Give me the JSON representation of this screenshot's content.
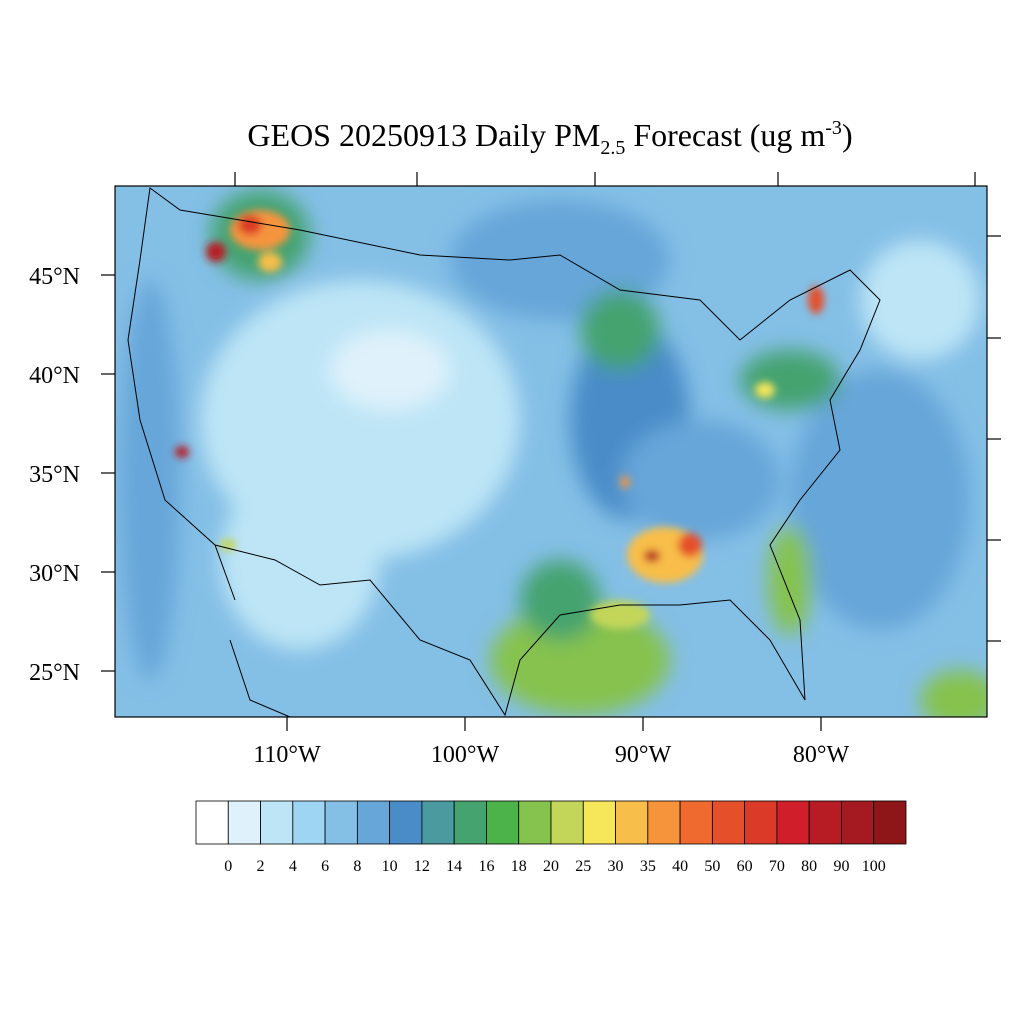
{
  "title": {
    "parts": [
      "GEOS 20250913 Daily PM",
      "2.5",
      " Forecast (ug m",
      "-3",
      ")"
    ]
  },
  "map": {
    "lat_ticks": [
      {
        "value": 45,
        "label": "45°N"
      },
      {
        "value": 40,
        "label": "40°N"
      },
      {
        "value": 35,
        "label": "35°N"
      },
      {
        "value": 30,
        "label": "30°N"
      },
      {
        "value": 25,
        "label": "25°N"
      }
    ],
    "lon_ticks": [
      {
        "value": -110,
        "label": "110°W"
      },
      {
        "value": -100,
        "label": "100°W"
      },
      {
        "value": -90,
        "label": "90°W"
      },
      {
        "value": -80,
        "label": "80°W"
      }
    ]
  },
  "colorbar": {
    "levels": [
      0,
      2,
      4,
      6,
      8,
      10,
      12,
      14,
      16,
      18,
      20,
      25,
      30,
      35,
      40,
      50,
      60,
      70,
      80,
      90,
      100
    ],
    "colors": [
      "#ffffff",
      "#dff2fb",
      "#bde5f6",
      "#9dd5f3",
      "#84bfe6",
      "#66a6d9",
      "#4a8cc8",
      "#4a9aa0",
      "#45a36f",
      "#4cb34b",
      "#86c24e",
      "#c3d65a",
      "#f6e65a",
      "#f8be4a",
      "#f6943c",
      "#ef6a2e",
      "#e5502b",
      "#db3a28",
      "#d01f2a",
      "#b71b24",
      "#a51a20",
      "#8e1518"
    ]
  }
}
